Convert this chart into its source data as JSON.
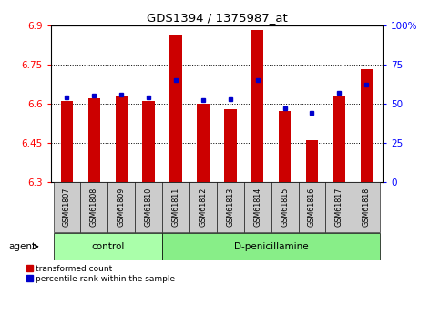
{
  "title": "GDS1394 / 1375987_at",
  "samples": [
    "GSM61807",
    "GSM61808",
    "GSM61809",
    "GSM61810",
    "GSM61811",
    "GSM61812",
    "GSM61813",
    "GSM61814",
    "GSM61815",
    "GSM61816",
    "GSM61817",
    "GSM61818"
  ],
  "red_values": [
    6.61,
    6.62,
    6.63,
    6.61,
    6.86,
    6.6,
    6.58,
    6.88,
    6.57,
    6.46,
    6.63,
    6.73
  ],
  "blue_values": [
    54,
    55,
    56,
    54,
    65,
    52,
    53,
    65,
    47,
    44,
    57,
    62
  ],
  "y_min": 6.3,
  "y_max": 6.9,
  "y_ticks_left": [
    6.3,
    6.45,
    6.6,
    6.75,
    6.9
  ],
  "y_ticks_right": [
    0,
    25,
    50,
    75,
    100
  ],
  "bar_color": "#cc0000",
  "dot_color": "#0000cc",
  "n_control": 4,
  "n_treatment": 8,
  "control_label": "control",
  "treatment_label": "D-penicillamine",
  "agent_label": "agent",
  "legend_red": "transformed count",
  "legend_blue": "percentile rank within the sample",
  "bar_base": 6.3,
  "control_bg": "#aaffaa",
  "treatment_bg": "#88ee88",
  "tick_label_bg": "#cccccc",
  "white_bg": "#ffffff"
}
